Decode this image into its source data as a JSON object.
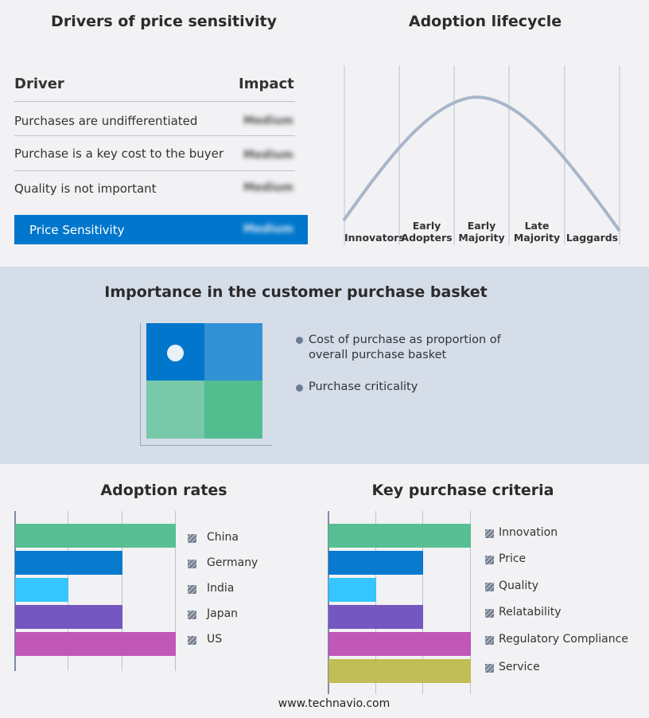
{
  "drivers": {
    "title": "Drivers of price sensitivity",
    "col_driver": "Driver",
    "col_impact": "Impact",
    "rows": [
      {
        "driver": "Purchases are undifferentiated",
        "impact": "Medium"
      },
      {
        "driver": "Purchase is a key cost to the buyer",
        "impact": "Medium"
      },
      {
        "driver": "Quality is not important",
        "impact": "Medium"
      }
    ],
    "summary": {
      "label": "Price Sensitivity",
      "impact": "Medium",
      "color": "#0077cc"
    }
  },
  "lifecycle": {
    "title": "Adoption lifecycle",
    "stages": [
      [
        "",
        "Innovators"
      ],
      [
        "Early",
        "Adopters"
      ],
      [
        "Early",
        "Majority"
      ],
      [
        "Late",
        "Majority"
      ],
      [
        "",
        "Laggards"
      ]
    ]
  },
  "basket": {
    "title": "Importance in the customer purchase basket",
    "legend": [
      "Cost of purchase as proportion of overall purchase basket",
      "Purchase criticality"
    ],
    "colors": [
      "#0077cc",
      "#3391d6",
      "#78c8aa",
      "#52bd8f"
    ]
  },
  "chart_data": [
    {
      "type": "bar",
      "title": "Adoption rates",
      "categories": [
        "China",
        "Germany",
        "India",
        "Japan",
        "US"
      ],
      "values": [
        3,
        2,
        1,
        2,
        3
      ],
      "xlim": [
        0,
        3
      ],
      "grid": true,
      "legend": "right",
      "colors": [
        "#52bd8f",
        "#0077cc",
        "#2ec4ff",
        "#6f52bd",
        "#bf52b5"
      ]
    },
    {
      "type": "bar",
      "title": "Key purchase criteria",
      "categories": [
        "Innovation",
        "Price",
        "Quality",
        "Relatability",
        "Regulatory Compliance",
        "Service"
      ],
      "values": [
        3,
        2,
        1,
        2,
        3,
        3
      ],
      "xlim": [
        0,
        3
      ],
      "grid": true,
      "legend": "right",
      "colors": [
        "#52bd8f",
        "#0077cc",
        "#2ec4ff",
        "#6f52bd",
        "#bf52b5",
        "#bfbb52"
      ]
    }
  ],
  "footer": "www.technavio.com"
}
